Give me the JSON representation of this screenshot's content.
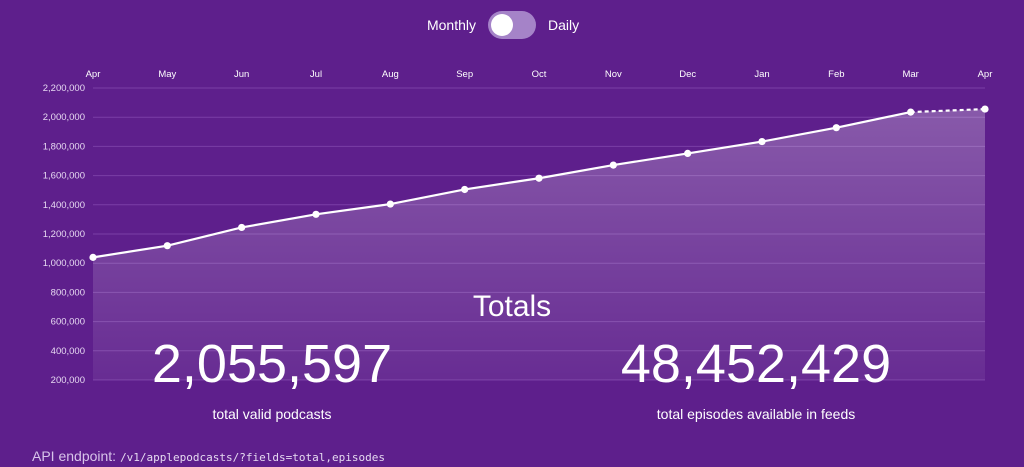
{
  "toggle": {
    "left_label": "Monthly",
    "right_label": "Daily",
    "selected": "Monthly"
  },
  "chart_data": {
    "type": "area",
    "categories": [
      "Apr",
      "May",
      "Jun",
      "Jul",
      "Aug",
      "Sep",
      "Oct",
      "Nov",
      "Dec",
      "Jan",
      "Feb",
      "Mar",
      "Apr"
    ],
    "values": [
      1040000,
      1120000,
      1245000,
      1335000,
      1405000,
      1505000,
      1582000,
      1672000,
      1752000,
      1833000,
      1928000,
      2035000,
      2055597
    ],
    "projected_last_point": true,
    "y_ticks": [
      200000,
      400000,
      600000,
      800000,
      1000000,
      1200000,
      1400000,
      1600000,
      1800000,
      2000000,
      2200000
    ],
    "y_tick_labels": [
      "200,000",
      "400,000",
      "600,000",
      "800,000",
      "1,000,000",
      "1,200,000",
      "1,400,000",
      "1,600,000",
      "1,800,000",
      "2,000,000",
      "2,200,000"
    ],
    "ylim": [
      0,
      2200000
    ],
    "grid": true,
    "colors": {
      "line": "#ffffff",
      "fill": "#ffffff",
      "grid": "#7a3fa6"
    }
  },
  "totals": {
    "title": "Totals",
    "podcasts_value": "2,055,597",
    "podcasts_label": "total valid podcasts",
    "episodes_value": "48,452,429",
    "episodes_label": "total episodes available in feeds"
  },
  "api": {
    "label": "API endpoint:",
    "endpoint": "/v1/applepodcasts/?fields=total,episodes"
  },
  "colors": {
    "background": "#5e1f8c",
    "toggle_track": "#a583c8"
  }
}
